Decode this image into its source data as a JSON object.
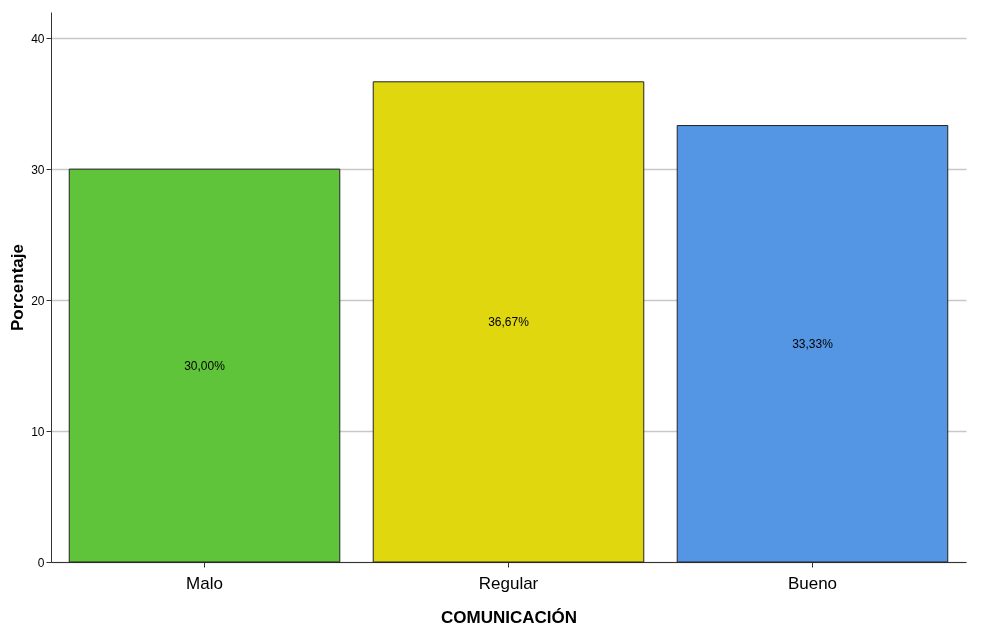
{
  "chart_data": {
    "type": "bar",
    "xlabel": "COMUNICACIÓN",
    "ylabel": "Porcentaje",
    "categories": [
      "Malo",
      "Regular",
      "Bueno"
    ],
    "values": [
      30.0,
      36.67,
      33.33
    ],
    "value_labels": [
      "30,00%",
      "36,67%",
      "33,33%"
    ],
    "colors": [
      "#5fc43a",
      "#e1d70f",
      "#5496e4"
    ],
    "ylim": [
      0,
      42
    ],
    "yticks": [
      0,
      10,
      20,
      30,
      40
    ],
    "grid": "y"
  }
}
